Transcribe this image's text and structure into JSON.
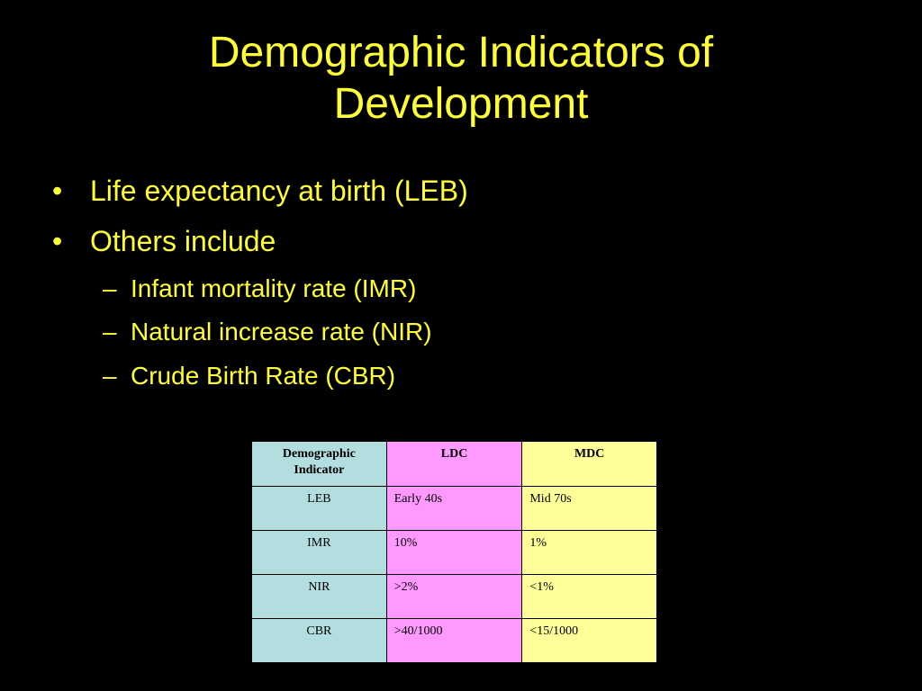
{
  "slide": {
    "title_line1": "Demographic Indicators of",
    "title_line2": "Development",
    "bullets": [
      {
        "mark": "•",
        "text": "Life expectancy at birth (LEB)"
      },
      {
        "mark": "•",
        "text": "Others include"
      }
    ],
    "sub_bullets": [
      {
        "mark": "–",
        "text": "Infant mortality rate (IMR)"
      },
      {
        "mark": "–",
        "text": "Natural increase rate (NIR)"
      },
      {
        "mark": "–",
        "text": "Crude Birth Rate (CBR)"
      }
    ]
  },
  "table": {
    "headers": [
      "Demographic Indicator",
      "LDC",
      "MDC"
    ],
    "rows": [
      [
        "LEB",
        "Early 40s",
        "Mid 70s"
      ],
      [
        "IMR",
        "10%",
        "1%"
      ],
      [
        "NIR",
        ">2%",
        "<1%"
      ],
      [
        "CBR",
        ">40/1000",
        "<15/1000"
      ]
    ]
  },
  "colors": {
    "background": "#000000",
    "text": "#FFFF33",
    "indicator_column": "#B3DEDF",
    "ldc_column": "#FF99FF",
    "mdc_column": "#FFFF99"
  }
}
